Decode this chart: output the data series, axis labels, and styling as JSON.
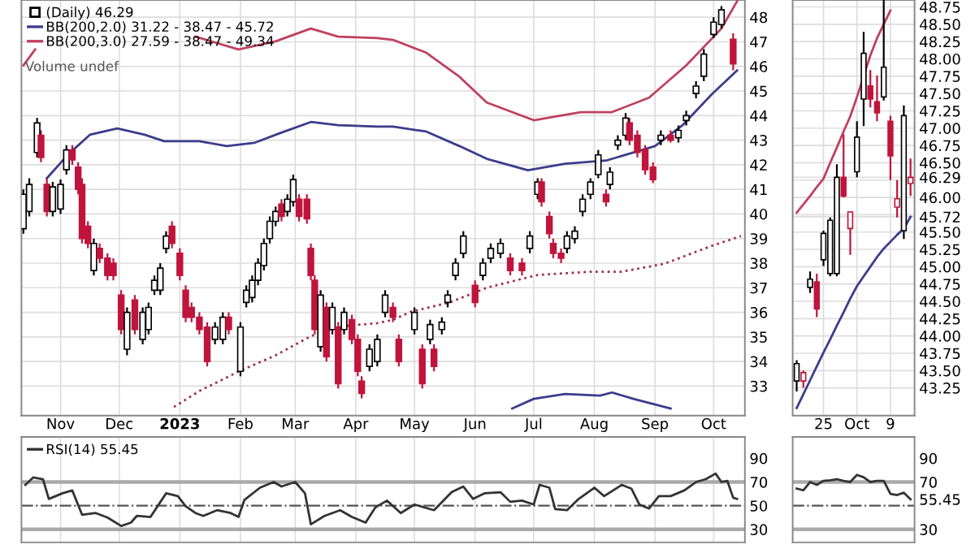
{
  "chart_data": [
    {
      "type": "candlestick",
      "title": "(Daily) 46.29",
      "xlim": [
        "2022-10-12",
        "2023-10-17"
      ],
      "ylim": [
        31.8,
        48.7
      ],
      "yticks": [
        33,
        34,
        35,
        36,
        37,
        38,
        39,
        40,
        41,
        42,
        43,
        44,
        45,
        46,
        47,
        48
      ],
      "xticks": [
        {
          "value": "2022-11-01",
          "label": "Nov"
        },
        {
          "value": "2022-12-01",
          "label": "Dec"
        },
        {
          "value": "2023-01-01",
          "label": "2023"
        },
        {
          "value": "2023-02-01",
          "label": "Feb"
        },
        {
          "value": "2023-03-01",
          "label": "Mar"
        },
        {
          "value": "2023-04-01",
          "label": "Apr"
        },
        {
          "value": "2023-05-01",
          "label": "May"
        },
        {
          "value": "2023-06-01",
          "label": "Jun"
        },
        {
          "value": "2023-07-01",
          "label": "Jul"
        },
        {
          "value": "2023-08-01",
          "label": "Aug"
        },
        {
          "value": "2023-09-01",
          "label": "Sep"
        },
        {
          "value": "2023-10-01",
          "label": "Oct"
        }
      ],
      "grid": true,
      "legend": "top left",
      "annotations": [
        "Volume undef"
      ],
      "colors": [
        "#000000",
        "#000000",
        "#000000",
        "#c0143c",
        "#c0143c",
        "#000000",
        "#000000",
        "#000000",
        "#c0143c",
        "#c0143c",
        "#c0143c",
        "#c0143c",
        "#000000",
        "#c0143c",
        "#c0143c",
        "#c0143c",
        "#c0143c",
        "#000000",
        "#c0143c",
        "#000000",
        "#000000",
        "#000000",
        "#000000",
        "#000000",
        "#c0143c",
        "#c0143c",
        "#c0143c",
        "#c0143c",
        "#c0143c",
        "#c0143c",
        "#000000",
        "#000000",
        "#c0143c",
        "#000000",
        "#000000",
        "#000000",
        "#000000",
        "#000000",
        "#000000",
        "#000000",
        "#c0143c",
        "#000000",
        "#000000",
        "#c0143c",
        "#c0143c",
        "#c0143c",
        "#c0143c",
        "#000000",
        "#c0143c",
        "#000000",
        "#c0143c",
        "#000000",
        "#c0143c",
        "#c0143c",
        "#c0143c",
        "#000000",
        "#000000",
        "#000000",
        "#c0143c",
        "#c0143c",
        "#000000",
        "#c0143c",
        "#000000",
        "#c0143c",
        "#000000",
        "#000000",
        "#000000",
        "#000000",
        "#c0143c",
        "#000000",
        "#000000",
        "#000000",
        "#c0143c",
        "#c0143c",
        "#000000",
        "#000000",
        "#c0143c",
        "#c0143c",
        "#c0143c",
        "#c0143c",
        "#000000",
        "#000000",
        "#000000",
        "#000000",
        "#000000",
        "#c0143c",
        "#000000",
        "#000000",
        "#000000",
        "#c0143c",
        "#c0143c",
        "#c0143c",
        "#c0143c",
        "#000000",
        "#c0143c",
        "#000000",
        "#000000",
        "#000000",
        "#000000",
        "#000000",
        "#000000",
        "#c0143c"
      ],
      "x": [
        "2022-10-13",
        "2022-10-16",
        "2022-10-20",
        "2022-10-22",
        "2022-10-25",
        "2022-10-28",
        "2022-11-01",
        "2022-11-04",
        "2022-11-07",
        "2022-11-10",
        "2022-11-12",
        "2022-11-15",
        "2022-11-18",
        "2022-11-21",
        "2022-11-25",
        "2022-11-28",
        "2022-12-02",
        "2022-12-05",
        "2022-12-09",
        "2022-12-13",
        "2022-12-16",
        "2022-12-19",
        "2022-12-22",
        "2022-12-25",
        "2022-12-28",
        "2023-01-01",
        "2023-01-04",
        "2023-01-07",
        "2023-01-11",
        "2023-01-15",
        "2023-01-19",
        "2023-01-23",
        "2023-01-26",
        "2023-02-01",
        "2023-02-04",
        "2023-02-07",
        "2023-02-10",
        "2023-02-13",
        "2023-02-16",
        "2023-02-19",
        "2023-02-22",
        "2023-02-25",
        "2023-02-28",
        "2023-03-03",
        "2023-03-07",
        "2023-03-09",
        "2023-03-11",
        "2023-03-14",
        "2023-03-17",
        "2023-03-20",
        "2023-03-23",
        "2023-03-26",
        "2023-03-30",
        "2023-04-02",
        "2023-04-04",
        "2023-04-08",
        "2023-04-12",
        "2023-04-16",
        "2023-04-20",
        "2023-04-23",
        "2023-05-01",
        "2023-05-05",
        "2023-05-09",
        "2023-05-11",
        "2023-05-15",
        "2023-05-18",
        "2023-05-22",
        "2023-05-26",
        "2023-06-01",
        "2023-06-05",
        "2023-06-09",
        "2023-06-14",
        "2023-06-19",
        "2023-06-25",
        "2023-06-29",
        "2023-07-03",
        "2023-07-05",
        "2023-07-09",
        "2023-07-11",
        "2023-07-15",
        "2023-07-18",
        "2023-07-22",
        "2023-07-26",
        "2023-07-30",
        "2023-08-03",
        "2023-08-07",
        "2023-08-09",
        "2023-08-13",
        "2023-08-17",
        "2023-08-19",
        "2023-08-23",
        "2023-08-27",
        "2023-08-31",
        "2023-09-04",
        "2023-09-09",
        "2023-09-13",
        "2023-09-17",
        "2023-09-22",
        "2023-09-26",
        "2023-10-01",
        "2023-10-05",
        "2023-10-11"
      ],
      "ohlc": [
        [
          39.4,
          41.0,
          39.2,
          40.8
        ],
        [
          40.1,
          41.45,
          39.9,
          41.2
        ],
        [
          42.5,
          43.9,
          42.3,
          43.7
        ],
        [
          43.2,
          43.4,
          42.1,
          42.3
        ],
        [
          41.2,
          41.45,
          39.9,
          40.1
        ],
        [
          40.1,
          41.3,
          39.9,
          41.1
        ],
        [
          40.2,
          41.4,
          40.0,
          41.2
        ],
        [
          41.8,
          42.8,
          41.6,
          42.6
        ],
        [
          42.6,
          42.8,
          42.0,
          42.2
        ],
        [
          41.9,
          42.1,
          40.8,
          41.0
        ],
        [
          41.2,
          41.45,
          38.8,
          39.0
        ],
        [
          39.5,
          39.7,
          38.6,
          38.8
        ],
        [
          37.7,
          39.0,
          37.5,
          38.8
        ],
        [
          38.6,
          38.8,
          38.0,
          38.2
        ],
        [
          38.2,
          38.4,
          37.3,
          37.5
        ],
        [
          38.0,
          38.2,
          37.3,
          37.5
        ],
        [
          36.7,
          36.9,
          35.1,
          35.3
        ],
        [
          34.5,
          36.2,
          34.25,
          36.0
        ],
        [
          36.5,
          36.7,
          35.1,
          35.3
        ],
        [
          34.9,
          36.2,
          34.7,
          36.0
        ],
        [
          35.3,
          36.4,
          35.1,
          36.2
        ],
        [
          36.9,
          37.5,
          36.7,
          37.3
        ],
        [
          36.9,
          38.0,
          36.7,
          37.8
        ],
        [
          38.6,
          39.3,
          38.4,
          39.1
        ],
        [
          39.5,
          39.7,
          38.6,
          38.8
        ],
        [
          38.4,
          38.6,
          37.3,
          37.5
        ],
        [
          36.9,
          37.1,
          35.6,
          35.8
        ],
        [
          36.2,
          36.4,
          35.6,
          35.8
        ],
        [
          35.8,
          36.0,
          35.1,
          35.3
        ],
        [
          35.4,
          35.6,
          33.8,
          34.0
        ],
        [
          34.9,
          35.6,
          34.7,
          35.4
        ],
        [
          34.9,
          36.0,
          34.7,
          35.8
        ],
        [
          35.8,
          36.0,
          35.1,
          35.3
        ],
        [
          33.6,
          35.6,
          33.4,
          35.4
        ],
        [
          36.4,
          37.1,
          36.2,
          36.9
        ],
        [
          36.6,
          37.5,
          36.4,
          37.3
        ],
        [
          37.3,
          38.2,
          37.1,
          38.0
        ],
        [
          37.9,
          39.0,
          37.7,
          38.8
        ],
        [
          39.0,
          39.9,
          38.8,
          39.7
        ],
        [
          39.7,
          40.3,
          39.5,
          40.1
        ],
        [
          40.4,
          40.6,
          39.7,
          39.9
        ],
        [
          40.1,
          40.8,
          39.9,
          40.6
        ],
        [
          40.5,
          41.6,
          40.3,
          41.4
        ],
        [
          40.6,
          40.8,
          39.7,
          39.9
        ],
        [
          40.6,
          40.8,
          39.6,
          39.8
        ],
        [
          38.6,
          38.8,
          37.3,
          37.5
        ],
        [
          37.3,
          37.5,
          35.1,
          35.3
        ],
        [
          34.6,
          36.9,
          34.4,
          36.7
        ],
        [
          36.2,
          36.4,
          34.0,
          34.2
        ],
        [
          35.3,
          36.4,
          35.1,
          36.2
        ],
        [
          35.4,
          35.6,
          32.9,
          33.1
        ],
        [
          35.3,
          36.2,
          35.1,
          36.0
        ],
        [
          35.7,
          35.9,
          34.7,
          34.9
        ],
        [
          34.9,
          35.1,
          33.4,
          33.6
        ],
        [
          33.2,
          33.4,
          32.5,
          32.7
        ],
        [
          33.8,
          34.7,
          33.6,
          34.5
        ],
        [
          34.0,
          35.1,
          33.8,
          34.9
        ],
        [
          36.0,
          36.9,
          35.8,
          36.7
        ],
        [
          36.2,
          36.4,
          35.6,
          35.8
        ],
        [
          34.9,
          35.1,
          33.8,
          34.0
        ],
        [
          35.3,
          36.2,
          35.1,
          36.0
        ],
        [
          34.5,
          34.7,
          32.9,
          33.1
        ],
        [
          34.9,
          35.7,
          34.7,
          35.5
        ],
        [
          34.5,
          34.7,
          33.6,
          33.8
        ],
        [
          35.3,
          35.8,
          35.1,
          35.6
        ],
        [
          36.4,
          36.9,
          36.2,
          36.7
        ],
        [
          37.5,
          38.2,
          37.3,
          38.0
        ],
        [
          38.4,
          39.3,
          38.2,
          39.1
        ],
        [
          37.1,
          37.3,
          36.2,
          36.4
        ],
        [
          37.5,
          38.2,
          37.3,
          38.0
        ],
        [
          38.2,
          38.8,
          38.0,
          38.6
        ],
        [
          38.4,
          39.0,
          38.2,
          38.8
        ],
        [
          38.2,
          38.4,
          37.5,
          37.7
        ],
        [
          38.0,
          38.2,
          37.5,
          37.7
        ],
        [
          38.6,
          39.3,
          38.4,
          39.1
        ],
        [
          40.8,
          41.45,
          40.6,
          41.3
        ],
        [
          41.3,
          41.45,
          40.3,
          40.5
        ],
        [
          39.9,
          40.1,
          39.0,
          39.2
        ],
        [
          38.8,
          39.0,
          38.2,
          38.4
        ],
        [
          38.4,
          38.6,
          38.0,
          38.2
        ],
        [
          38.6,
          39.3,
          38.4,
          39.1
        ],
        [
          39.0,
          39.5,
          38.8,
          39.3
        ],
        [
          40.1,
          40.8,
          39.9,
          40.6
        ],
        [
          40.8,
          41.45,
          40.6,
          41.3
        ],
        [
          41.6,
          42.6,
          41.45,
          42.4
        ],
        [
          40.8,
          41.0,
          40.3,
          40.5
        ],
        [
          41.2,
          41.9,
          41.0,
          41.7
        ],
        [
          42.8,
          43.2,
          42.6,
          43.0
        ],
        [
          43.2,
          44.1,
          43.0,
          43.9
        ],
        [
          43.7,
          43.9,
          42.8,
          43.0
        ],
        [
          43.2,
          43.4,
          42.3,
          42.5
        ],
        [
          42.6,
          42.8,
          41.6,
          41.8
        ],
        [
          41.9,
          42.1,
          41.25,
          41.4
        ],
        [
          43.0,
          43.4,
          42.8,
          43.2
        ],
        [
          43.2,
          43.4,
          42.9,
          43.0
        ],
        [
          43.1,
          43.6,
          42.9,
          43.4
        ],
        [
          43.8,
          44.2,
          43.6,
          44.0
        ],
        [
          44.9,
          45.4,
          44.7,
          45.2
        ],
        [
          45.6,
          46.7,
          45.4,
          46.5
        ],
        [
          47.3,
          48.0,
          47.15,
          47.8
        ],
        [
          47.7,
          48.45,
          47.54,
          48.3
        ],
        [
          47.1,
          47.35,
          45.84,
          46.1
        ]
      ],
      "series": [
        {
          "type": "line",
          "name": "BB(200,2.0) 31.22 - 38.47 - 45.72",
          "color": "#3c3c8c",
          "x": [
            "2022-10-25",
            "2022-11-05",
            "2022-11-16",
            "2022-11-30",
            "2022-12-14",
            "2022-12-24",
            "2023-01-11",
            "2023-01-25",
            "2023-02-08",
            "2023-02-21",
            "2023-03-09",
            "2023-03-23",
            "2023-04-12",
            "2023-04-20",
            "2023-05-07",
            "2023-05-24",
            "2023-06-07",
            "2023-06-28",
            "2023-07-17",
            "2023-08-07",
            "2023-08-18",
            "2023-09-01",
            "2023-09-15",
            "2023-09-30",
            "2023-10-13"
          ],
          "values": [
            41.45,
            42.43,
            43.22,
            43.48,
            43.22,
            42.96,
            42.96,
            42.76,
            42.89,
            43.28,
            43.74,
            43.61,
            43.55,
            43.55,
            43.35,
            42.76,
            42.24,
            41.78,
            42.04,
            42.17,
            42.43,
            42.76,
            43.6,
            44.86,
            45.84
          ]
        },
        {
          "type": "line",
          "color": "#3c3c8c",
          "x": [
            "2023-06-20",
            "2023-07-01",
            "2023-07-17",
            "2023-08-04",
            "2023-08-10",
            "2023-08-21",
            "2023-09-09"
          ],
          "values": [
            32.09,
            32.48,
            32.68,
            32.61,
            32.74,
            32.48,
            32.09
          ]
        },
        {
          "type": "line",
          "name": "BB(200,3.0) 27.59 - 38.47 - 49.34",
          "color": "#c04060",
          "x": [
            "2022-10-13",
            "2022-10-19",
            "2022-10-21",
            "2023-01-07",
            "2023-01-09",
            "2023-01-31",
            "2023-02-19",
            "2023-03-09",
            "2023-03-23",
            "2023-04-12",
            "2023-04-20",
            "2023-05-07",
            "2023-05-24",
            "2023-06-07",
            "2023-07-01",
            "2023-07-25",
            "2023-08-10",
            "2023-08-29",
            "2023-09-17",
            "2023-10-05",
            "2023-10-13"
          ],
          "values": [
            46.04,
            46.69,
            null,
            null,
            47.21,
            46.69,
            47.02,
            47.54,
            47.21,
            47.15,
            47.08,
            46.56,
            45.58,
            44.53,
            43.81,
            44.14,
            44.14,
            44.73,
            46.04,
            47.54,
            48.65
          ]
        },
        {
          "type": "line",
          "color": "#a03050",
          "line_style": "dotted",
          "x": [
            "2022-12-29",
            "2023-01-11",
            "2023-01-31",
            "2023-02-19",
            "2023-03-09",
            "2023-03-23",
            "2023-04-12",
            "2023-04-20",
            "2023-04-29",
            "2023-05-19",
            "2023-06-07",
            "2023-07-03",
            "2023-07-30",
            "2023-08-15",
            "2023-09-06",
            "2023-09-30",
            "2023-10-15"
          ],
          "values": [
            32.15,
            32.8,
            33.59,
            34.25,
            35.03,
            35.42,
            35.56,
            35.69,
            36.02,
            36.4,
            37.0,
            37.52,
            37.65,
            37.65,
            37.98,
            38.7,
            39.1
          ]
        }
      ]
    },
    {
      "type": "line",
      "xlim": [
        "2022-10-12",
        "2023-10-17"
      ],
      "ylim": [
        19,
        108
      ],
      "yticks": [
        30,
        50,
        70,
        90
      ],
      "grid": "x",
      "tick_labels": "y",
      "legend": "top left",
      "xticks": [
        {
          "value": "2022-11-01",
          "label": null
        },
        {
          "value": "2022-12-01",
          "label": null
        },
        {
          "value": "2023-01-01",
          "label": null
        },
        {
          "value": "2023-02-01",
          "label": null
        },
        {
          "value": "2023-03-01",
          "label": null
        },
        {
          "value": "2023-04-01",
          "label": null
        },
        {
          "value": "2023-05-01",
          "label": null
        },
        {
          "value": "2023-06-01",
          "label": null
        },
        {
          "value": "2023-07-01",
          "label": null
        },
        {
          "value": "2023-08-01",
          "label": null
        },
        {
          "value": "2023-09-01",
          "label": null
        },
        {
          "value": "2023-10-01",
          "label": null
        }
      ],
      "ref_lines": [
        {
          "axis": "y",
          "value": 70,
          "color": "#aaaaaa",
          "line_style": "solid"
        },
        {
          "axis": "y",
          "value": 50,
          "color": "#555555",
          "line_style": "dashdot"
        },
        {
          "axis": "y",
          "value": 30,
          "color": "#aaaaaa",
          "line_style": "solid"
        }
      ],
      "series": [
        {
          "name": "RSI(14) 55.45",
          "color": "#333333",
          "x": [
            "2022-10-14",
            "2022-10-18",
            "2022-10-23",
            "2022-10-26",
            "2022-11-02",
            "2022-11-07",
            "2022-11-12",
            "2022-11-19",
            "2022-11-25",
            "2022-12-02",
            "2022-12-07",
            "2022-12-10",
            "2022-12-17",
            "2022-12-25",
            "2022-12-31",
            "2023-01-04",
            "2023-01-09",
            "2023-01-13",
            "2023-01-20",
            "2023-01-27",
            "2023-01-31",
            "2023-02-03",
            "2023-02-11",
            "2023-02-18",
            "2023-02-22",
            "2023-03-01",
            "2023-03-06",
            "2023-03-09",
            "2023-03-16",
            "2023-03-24",
            "2023-03-30",
            "2023-04-06",
            "2023-04-11",
            "2023-04-17",
            "2023-04-24",
            "2023-05-01",
            "2023-05-11",
            "2023-05-20",
            "2023-05-26",
            "2023-05-31",
            "2023-06-06",
            "2023-06-14",
            "2023-06-19",
            "2023-06-25",
            "2023-07-01",
            "2023-07-04",
            "2023-07-09",
            "2023-07-12",
            "2023-07-18",
            "2023-07-24",
            "2023-08-01",
            "2023-08-06",
            "2023-08-15",
            "2023-08-20",
            "2023-08-24",
            "2023-08-29",
            "2023-09-03",
            "2023-09-09",
            "2023-09-16",
            "2023-09-22",
            "2023-09-27",
            "2023-10-02",
            "2023-10-05",
            "2023-10-08",
            "2023-10-11",
            "2023-10-13"
          ],
          "values": [
            67.6,
            73.8,
            72.4,
            55.7,
            60.5,
            62.9,
            42.4,
            43.8,
            40,
            32.9,
            35.7,
            41.4,
            40.5,
            60.5,
            58.1,
            49.5,
            43.8,
            41.4,
            46.2,
            43.8,
            40.5,
            54.8,
            65.2,
            70,
            66.2,
            70,
            60.5,
            34.3,
            41.4,
            46.2,
            40.5,
            35.7,
            48.6,
            54.3,
            43.8,
            51,
            46.2,
            61.4,
            66.2,
            55.7,
            60.5,
            61.4,
            53.3,
            54.3,
            51,
            67.6,
            65.2,
            47.1,
            46.2,
            55.7,
            65.2,
            58.1,
            67.6,
            64.3,
            51,
            47.6,
            58.1,
            58.1,
            62.9,
            70,
            72.4,
            77.1,
            70,
            71,
            56.7,
            55.7
          ]
        }
      ]
    },
    {
      "type": "candlestick",
      "ylim": [
        42.85,
        48.85
      ],
      "yticks": [
        {
          "value": 43.25,
          "label": "43.25"
        },
        {
          "value": 43.5,
          "label": "43.50"
        },
        {
          "value": 43.75,
          "label": "43.75"
        },
        {
          "value": 44,
          "label": "44.00"
        },
        {
          "value": 44.25,
          "label": "44.25"
        },
        {
          "value": 44.5,
          "label": "44.50"
        },
        {
          "value": 44.75,
          "label": "44.75"
        },
        {
          "value": 45,
          "label": "45.00"
        },
        {
          "value": 45.25,
          "label": "45.25"
        },
        {
          "value": 45.5,
          "label": "45.50"
        },
        {
          "value": 45.72,
          "label": "45.72"
        },
        {
          "value": 45.75,
          "label": null
        },
        {
          "value": 46,
          "label": "46.00"
        },
        {
          "value": 46.25,
          "label": null
        },
        {
          "value": 46.29,
          "label": "46.29"
        },
        {
          "value": 46.5,
          "label": "46.50"
        },
        {
          "value": 46.75,
          "label": "46.75"
        },
        {
          "value": 47,
          "label": "47.00"
        },
        {
          "value": 47.25,
          "label": "47.25"
        },
        {
          "value": 47.5,
          "label": "47.50"
        },
        {
          "value": 47.75,
          "label": "47.75"
        },
        {
          "value": 48,
          "label": "48.00"
        },
        {
          "value": 48.25,
          "label": "48.25"
        },
        {
          "value": 48.5,
          "label": "48.50"
        },
        {
          "value": 48.75,
          "label": "48.75"
        }
      ],
      "grid": true,
      "categories": [
        null,
        null,
        null,
        null,
        "25",
        null,
        null,
        null,
        null,
        "Oct",
        null,
        null,
        null,
        null,
        "9",
        null,
        null,
        null
      ],
      "ohlc": [
        [
          43.35,
          43.65,
          43.2,
          43.6
        ],
        [
          43.35,
          43.5,
          43.25,
          43.47
        ],
        [
          44.7,
          44.93,
          44.62,
          44.82
        ],
        [
          44.78,
          44.9,
          44.27,
          44.39
        ],
        [
          45.1,
          45.52,
          45.01,
          45.48
        ],
        [
          44.9,
          45.71,
          44.86,
          45.67
        ],
        [
          44.9,
          46.48,
          44.86,
          46.29
        ],
        [
          46.29,
          46.91,
          46.0,
          46.02
        ],
        [
          45.55,
          45.8,
          45.17,
          45.79
        ],
        [
          46.37,
          47.1,
          46.29,
          46.87
        ],
        [
          47.42,
          48.39,
          47.03,
          48.08
        ],
        [
          47.61,
          47.84,
          47.3,
          47.42
        ],
        [
          47.38,
          47.76,
          47.1,
          47.22
        ],
        [
          47.45,
          48.85,
          47.4,
          47.88
        ],
        [
          47.1,
          47.18,
          46.25,
          46.6
        ],
        [
          45.86,
          46.25,
          45.71,
          45.98
        ],
        [
          45.52,
          47.33,
          45.4,
          47.18
        ],
        [
          46.2,
          46.56,
          46.02,
          46.29
        ]
      ],
      "colors": [
        "#000000",
        "#c0143c",
        "#000000",
        "#c0143c",
        "#000000",
        "#000000",
        "#000000",
        "#c0143c",
        "#c0143c",
        "#000000",
        "#000000",
        "#c0143c",
        "#c0143c",
        "#000000",
        "#c0143c",
        "#c0143c",
        "#000000",
        "#c0143c"
      ],
      "series": [
        {
          "type": "line",
          "color": "#c04060",
          "values": [
            45.78,
            45.9,
            46.02,
            46.15,
            46.27,
            46.5,
            46.72,
            46.95,
            47.17,
            47.45,
            47.75,
            48.05,
            48.3,
            48.5,
            48.7,
            null,
            null,
            null
          ]
        },
        {
          "type": "line",
          "color": "#3c3c8c",
          "values": [
            42.96,
            43.16,
            43.36,
            43.56,
            43.76,
            43.95,
            44.15,
            44.34,
            44.54,
            44.72,
            44.86,
            45.0,
            45.14,
            45.26,
            45.36,
            45.46,
            45.55,
            45.72
          ]
        }
      ]
    },
    {
      "type": "line",
      "ylim": [
        19,
        108
      ],
      "yticks": [
        30,
        {
          "value": 50,
          "label": null
        },
        {
          "value": 55.45,
          "label": "55.45"
        },
        70,
        90
      ],
      "grid": "x",
      "tick_labels": "y",
      "categories": [
        null,
        null,
        null,
        null,
        null,
        null,
        null,
        null,
        null,
        null,
        null,
        null,
        null,
        null,
        null,
        null,
        null,
        null
      ],
      "ref_lines": [
        {
          "axis": "y",
          "value": 70,
          "color": "#aaaaaa",
          "line_style": "solid"
        },
        {
          "axis": "y",
          "value": 50,
          "color": "#555555",
          "line_style": "dashdot"
        },
        {
          "axis": "y",
          "value": 30,
          "color": "#aaaaaa",
          "line_style": "solid"
        }
      ],
      "series": [
        {
          "color": "#333333",
          "values": [
            64.5,
            63,
            70,
            67.6,
            71,
            71.5,
            72.4,
            71,
            70,
            76,
            74,
            70,
            71,
            71,
            60,
            59,
            61,
            55.45
          ]
        }
      ]
    }
  ]
}
